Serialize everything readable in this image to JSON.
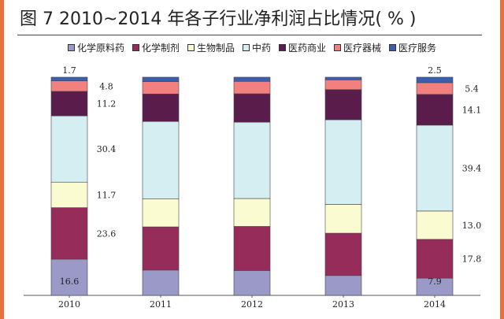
{
  "title": "图 7  2010~2014 年各子行业净利润占比情况( % )",
  "chart_data": {
    "type": "bar",
    "stacked": true,
    "normalized": true,
    "categories": [
      "2010",
      "2011",
      "2012",
      "2013",
      "2014"
    ],
    "series": [
      {
        "name": "化学原料药",
        "color": "#9b99c8",
        "values": [
          16.6,
          11.6,
          11.4,
          9.1,
          7.9
        ]
      },
      {
        "name": "化学制剂",
        "color": "#962c5a",
        "values": [
          23.6,
          19.8,
          20.2,
          19.4,
          17.8
        ]
      },
      {
        "name": "生物制品",
        "color": "#fbfbd2",
        "values": [
          11.7,
          12.9,
          12.8,
          13.2,
          13.0
        ]
      },
      {
        "name": "中药",
        "color": "#d4eef1",
        "values": [
          30.4,
          35.4,
          35.0,
          38.8,
          39.4
        ]
      },
      {
        "name": "医药商业",
        "color": "#5a1d4b",
        "values": [
          11.2,
          12.6,
          13.0,
          13.8,
          14.1
        ]
      },
      {
        "name": "医疗器械",
        "color": "#f2807f",
        "values": [
          4.8,
          5.7,
          5.7,
          4.5,
          5.4
        ]
      },
      {
        "name": "医疗服务",
        "color": "#3b5fb0",
        "values": [
          1.7,
          2.0,
          1.9,
          1.2,
          2.5
        ]
      }
    ],
    "data_labels": [
      {
        "category": "2010",
        "series": "化学原料药",
        "text": "16.6",
        "side": "inside"
      },
      {
        "category": "2010",
        "series": "化学制剂",
        "text": "23.6",
        "side": "right"
      },
      {
        "category": "2010",
        "series": "生物制品",
        "text": "11.7",
        "side": "right"
      },
      {
        "category": "2010",
        "series": "中药",
        "text": "30.4",
        "side": "right"
      },
      {
        "category": "2010",
        "series": "医药商业",
        "text": "11.2",
        "side": "right"
      },
      {
        "category": "2010",
        "series": "医疗器械",
        "text": "4.8",
        "side": "right"
      },
      {
        "category": "2010",
        "series": "医疗服务",
        "text": "1.7",
        "side": "above"
      },
      {
        "category": "2014",
        "series": "化学原料药",
        "text": "7.9",
        "side": "inside"
      },
      {
        "category": "2014",
        "series": "化学制剂",
        "text": "17.8",
        "side": "right"
      },
      {
        "category": "2014",
        "series": "生物制品",
        "text": "13.0",
        "side": "right"
      },
      {
        "category": "2014",
        "series": "中药",
        "text": "39.4",
        "side": "right"
      },
      {
        "category": "2014",
        "series": "医药商业",
        "text": "14.1",
        "side": "right"
      },
      {
        "category": "2014",
        "series": "医疗器械",
        "text": "5.4",
        "side": "right"
      },
      {
        "category": "2014",
        "series": "医疗服务",
        "text": "2.5",
        "side": "above"
      }
    ],
    "legend_position": "top",
    "grid": false
  }
}
